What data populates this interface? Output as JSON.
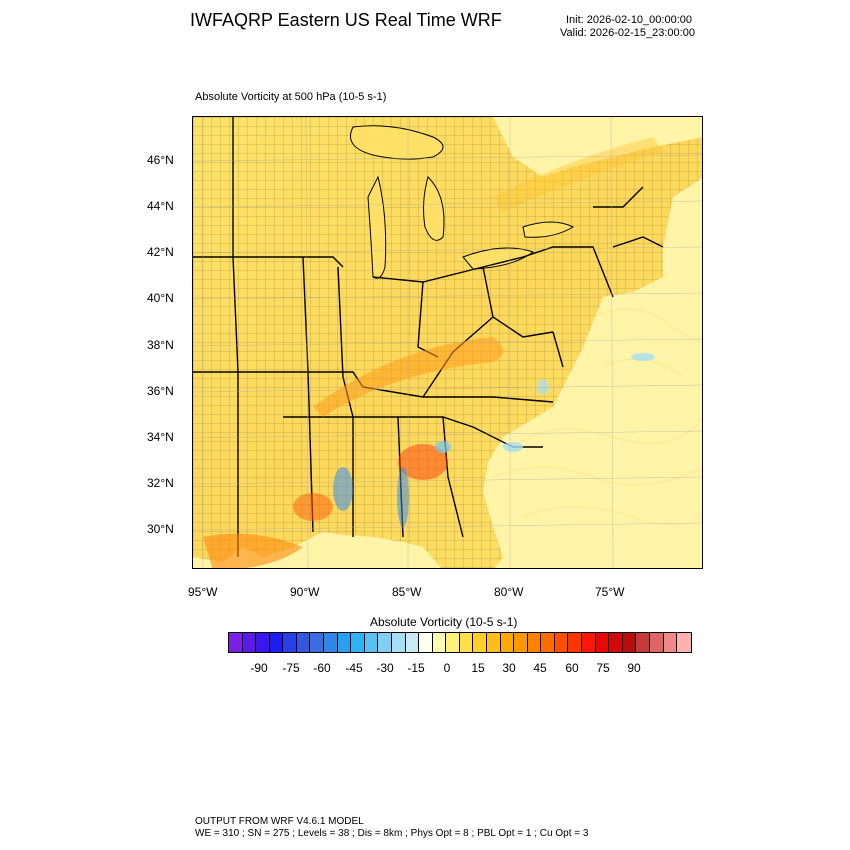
{
  "header": {
    "title": "IWFAQRP Eastern US Real Time WRF",
    "init": "Init: 2026-02-10_00:00:00",
    "valid": "Valid: 2026-02-15_23:00:00"
  },
  "plot": {
    "title": "Absolute Vorticity at 500 hPa   (10-5 s-1)"
  },
  "map": {
    "latitude_labels": [
      "46°N",
      "44°N",
      "42°N",
      "40°N",
      "38°N",
      "36°N",
      "34°N",
      "32°N",
      "30°N"
    ],
    "longitude_labels": [
      "95°W",
      "90°W",
      "85°W",
      "80°W",
      "75°W"
    ],
    "colors": {
      "land_base": "#fde36a",
      "ocean_base": "#fff4a8",
      "border": "#000000"
    }
  },
  "colorbar": {
    "title": "Absolute Vorticity  (10-5 s-1)",
    "tick_labels": [
      "-90",
      "-75",
      "-60",
      "-45",
      "-30",
      "-15",
      "0",
      "15",
      "30",
      "45",
      "60",
      "75",
      "90"
    ],
    "colors": [
      "#7b20e0",
      "#5a1ae8",
      "#3a17f0",
      "#1f1cf0",
      "#2a3ee6",
      "#3457e0",
      "#3a6ee0",
      "#2f86e8",
      "#2a9ef0",
      "#2fb4f2",
      "#56c2f2",
      "#7fd0f2",
      "#a6def4",
      "#c8eaf6",
      "#fffff0",
      "#fffdb0",
      "#fff27a",
      "#ffe04a",
      "#ffcf2a",
      "#ffbe1a",
      "#ffa80c",
      "#ff9606",
      "#ff8204",
      "#ff6c02",
      "#ff5002",
      "#ff3402",
      "#ff1604",
      "#e80808",
      "#d00a0a",
      "#b80e0e",
      "#c83a3a",
      "#e06464",
      "#f08a8a",
      "#ffb0b0"
    ]
  },
  "footer": {
    "line1": "OUTPUT FROM WRF V4.6.1 MODEL",
    "line2": "WE = 310 ; SN = 275 ; Levels = 38 ; Dis = 8km ; Phys Opt = 8 ; PBL Opt = 1 ; Cu Opt = 3"
  }
}
